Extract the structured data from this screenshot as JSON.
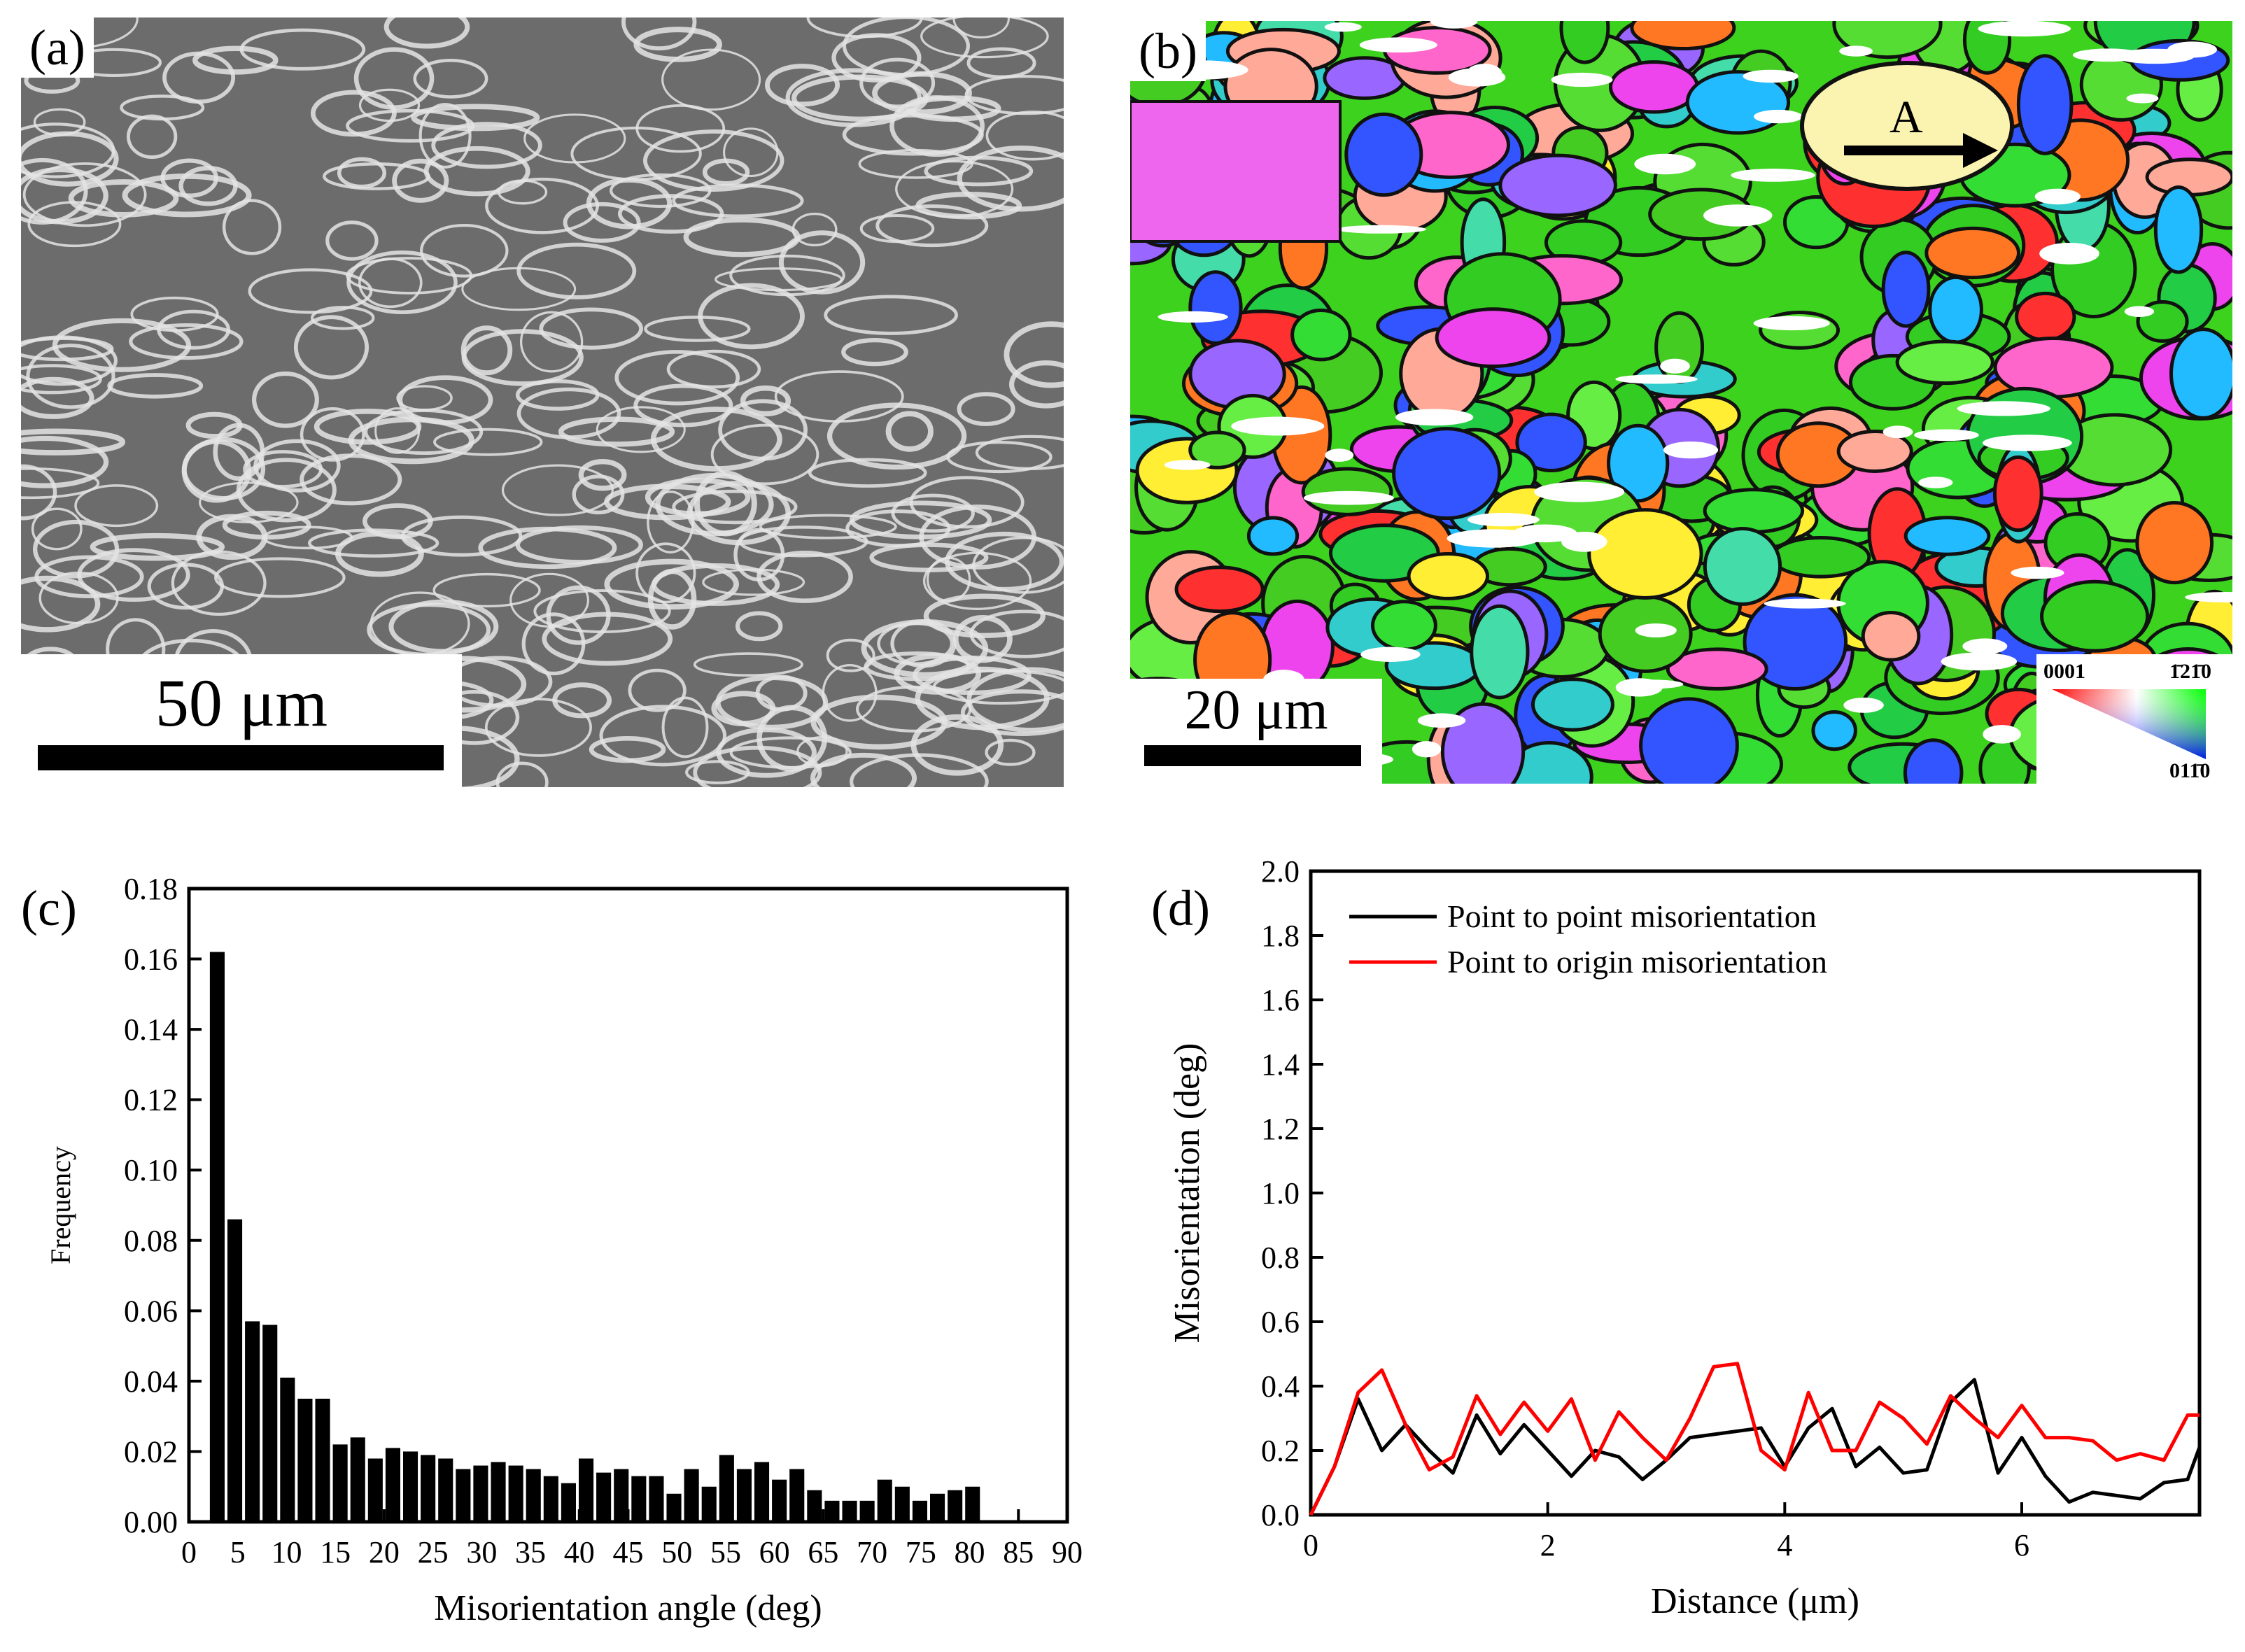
{
  "panel_a": {
    "label": "(a)",
    "scale_label": "50 μm"
  },
  "panel_b": {
    "label": "(b)",
    "arrow_label": "A",
    "scale_label": "20 μm",
    "legend": {
      "top_left": "0001",
      "top_right": "1̄21̄0",
      "bottom_right": "011̄0"
    }
  },
  "panel_c": {
    "label": "(c)"
  },
  "panel_d": {
    "label": "(d)"
  },
  "colors": {
    "black": "#000000",
    "red": "#ff0000",
    "sem_gray": "#6b6b6b",
    "grain_green": "#3cd21e"
  },
  "chart_data": [
    {
      "id": "c",
      "type": "bar",
      "xlabel": "Misorientation angle (deg)",
      "ylabel": "Frequency",
      "xlim": [
        0,
        90
      ],
      "ylim": [
        0,
        0.18
      ],
      "xticks": [
        0,
        5,
        10,
        15,
        20,
        25,
        30,
        35,
        40,
        45,
        50,
        55,
        60,
        65,
        70,
        75,
        80,
        85,
        90
      ],
      "yticks": [
        0.0,
        0.02,
        0.04,
        0.06,
        0.08,
        0.1,
        0.12,
        0.14,
        0.16,
        0.18
      ],
      "ytick_labels": [
        "0.00",
        "0.02",
        "0.04",
        "0.06",
        "0.08",
        "0.10",
        "0.12",
        "0.14",
        "0.16",
        "0.18"
      ],
      "bin_width": 1.8,
      "bin_start": 2.0,
      "values": [
        0.162,
        0.086,
        0.057,
        0.056,
        0.041,
        0.035,
        0.035,
        0.022,
        0.024,
        0.018,
        0.021,
        0.02,
        0.019,
        0.018,
        0.015,
        0.016,
        0.017,
        0.016,
        0.015,
        0.013,
        0.011,
        0.018,
        0.014,
        0.015,
        0.013,
        0.013,
        0.008,
        0.015,
        0.01,
        0.019,
        0.015,
        0.017,
        0.012,
        0.015,
        0.009,
        0.006,
        0.006,
        0.006,
        0.012,
        0.01,
        0.006,
        0.008,
        0.009,
        0.01
      ]
    },
    {
      "id": "d",
      "type": "line",
      "xlabel": "Distance (μm)",
      "ylabel": "Misorientation (deg)",
      "xlim": [
        0,
        7.5
      ],
      "ylim": [
        0,
        2.0
      ],
      "xticks": [
        0,
        2,
        4,
        6
      ],
      "yticks": [
        0.0,
        0.2,
        0.4,
        0.6,
        0.8,
        1.0,
        1.2,
        1.4,
        1.6,
        1.8,
        2.0
      ],
      "ytick_labels": [
        "0.0",
        "0.2",
        "0.4",
        "0.6",
        "0.8",
        "1.0",
        "1.2",
        "1.4",
        "1.6",
        "1.8",
        "2.0"
      ],
      "legend_position": "top-left",
      "x": [
        0,
        0.2,
        0.4,
        0.6,
        0.8,
        1.0,
        1.2,
        1.4,
        1.6,
        1.8,
        2.0,
        2.2,
        2.4,
        2.6,
        2.8,
        3.0,
        3.2,
        3.4,
        3.6,
        3.8,
        4.0,
        4.2,
        4.4,
        4.6,
        4.8,
        5.0,
        5.2,
        5.4,
        5.6,
        5.8,
        6.0,
        6.2,
        6.4,
        6.6,
        6.8,
        7.0,
        7.2,
        7.4,
        7.5
      ],
      "series": [
        {
          "name": "Point to point misorientation",
          "color": "#000000",
          "values": [
            0.0,
            0.15,
            0.36,
            0.2,
            0.28,
            0.2,
            0.13,
            0.31,
            0.19,
            0.28,
            0.2,
            0.12,
            0.2,
            0.18,
            0.11,
            0.17,
            0.24,
            0.25,
            0.26,
            0.27,
            0.15,
            0.27,
            0.33,
            0.15,
            0.21,
            0.13,
            0.14,
            0.35,
            0.42,
            0.13,
            0.24,
            0.12,
            0.04,
            0.07,
            0.06,
            0.05,
            0.1,
            0.11,
            0.21
          ]
        },
        {
          "name": "Point to origin misorientation",
          "color": "#ff0000",
          "values": [
            0.0,
            0.15,
            0.38,
            0.45,
            0.28,
            0.14,
            0.18,
            0.37,
            0.25,
            0.35,
            0.26,
            0.36,
            0.17,
            0.32,
            0.24,
            0.17,
            0.3,
            0.46,
            0.47,
            0.2,
            0.14,
            0.38,
            0.2,
            0.2,
            0.35,
            0.3,
            0.22,
            0.37,
            0.3,
            0.24,
            0.34,
            0.24,
            0.24,
            0.23,
            0.17,
            0.19,
            0.17,
            0.31,
            0.31
          ]
        }
      ]
    }
  ]
}
